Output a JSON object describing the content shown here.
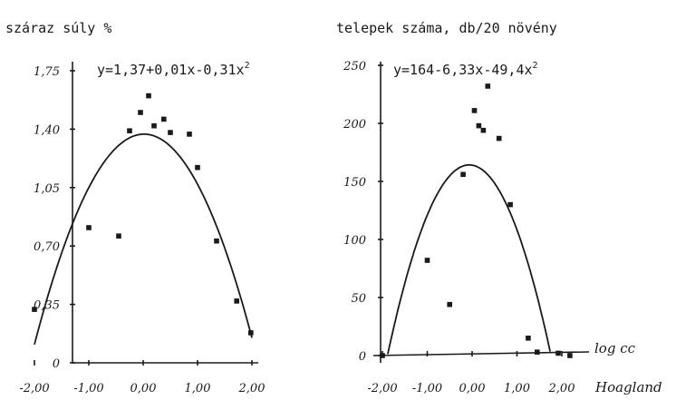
{
  "chart_data": [
    {
      "type": "scatter",
      "title": "száraz súly %",
      "equation": "y=1,37+0,01x-0,31x",
      "equation_exponent": "2",
      "fit": {
        "a": 1.37,
        "b": 0.01,
        "c": -0.31
      },
      "xlim": [
        -2.0,
        2.0
      ],
      "ylim": [
        0,
        1.75
      ],
      "xticks": [
        {
          "v": -2.0,
          "label": "-2,00"
        },
        {
          "v": -1.0,
          "label": "-1,00"
        },
        {
          "v": 0.0,
          "label": "0,00"
        },
        {
          "v": 1.0,
          "label": "1,00"
        },
        {
          "v": 2.0,
          "label": "2,00"
        }
      ],
      "yticks": [
        {
          "v": 0,
          "label": "0"
        },
        {
          "v": 0.35,
          "label": "0,35"
        },
        {
          "v": 0.7,
          "label": "0,70"
        },
        {
          "v": 1.05,
          "label": "1,05"
        },
        {
          "v": 1.4,
          "label": "1,40"
        },
        {
          "v": 1.75,
          "label": "1,75"
        }
      ],
      "points": [
        {
          "x": -2.0,
          "y": 0.32
        },
        {
          "x": -1.0,
          "y": 0.81
        },
        {
          "x": -0.45,
          "y": 0.76
        },
        {
          "x": -0.25,
          "y": 1.39
        },
        {
          "x": -0.05,
          "y": 1.5
        },
        {
          "x": 0.1,
          "y": 1.6
        },
        {
          "x": 0.2,
          "y": 1.42
        },
        {
          "x": 0.38,
          "y": 1.46
        },
        {
          "x": 0.5,
          "y": 1.38
        },
        {
          "x": 0.85,
          "y": 1.37
        },
        {
          "x": 1.0,
          "y": 1.17
        },
        {
          "x": 1.35,
          "y": 0.73
        },
        {
          "x": 1.72,
          "y": 0.37
        },
        {
          "x": 1.98,
          "y": 0.18
        }
      ]
    },
    {
      "type": "scatter",
      "title": "telepek száma, db/20 növény",
      "equation": "y=164-6,33x-49,4x",
      "equation_exponent": "2",
      "fit": {
        "a": 164,
        "b": -6.33,
        "c": -49.4
      },
      "xlabel": "log cc",
      "xlabel2": "Hoagland",
      "xlim": [
        -2.0,
        2.0
      ],
      "ylim": [
        0,
        250
      ],
      "xticks": [
        {
          "v": -2.0,
          "label": "-2,00"
        },
        {
          "v": -1.0,
          "label": "-1,00"
        },
        {
          "v": 0.0,
          "label": "0,00"
        },
        {
          "v": 1.0,
          "label": "1,00"
        },
        {
          "v": 2.0,
          "label": "2,00"
        }
      ],
      "yticks": [
        {
          "v": 0,
          "label": "0"
        },
        {
          "v": 50,
          "label": "50"
        },
        {
          "v": 100,
          "label": "100"
        },
        {
          "v": 150,
          "label": "150"
        },
        {
          "v": 200,
          "label": "200"
        },
        {
          "v": 250,
          "label": "250"
        }
      ],
      "points": [
        {
          "x": -2.0,
          "y": 0
        },
        {
          "x": -1.0,
          "y": 82
        },
        {
          "x": -0.5,
          "y": 44
        },
        {
          "x": -0.2,
          "y": 156
        },
        {
          "x": 0.05,
          "y": 211
        },
        {
          "x": 0.15,
          "y": 198
        },
        {
          "x": 0.25,
          "y": 194
        },
        {
          "x": 0.35,
          "y": 232
        },
        {
          "x": 0.6,
          "y": 187
        },
        {
          "x": 0.85,
          "y": 130
        },
        {
          "x": 1.25,
          "y": 15
        },
        {
          "x": 1.45,
          "y": 3
        },
        {
          "x": 1.92,
          "y": 2
        },
        {
          "x": 2.18,
          "y": 0
        }
      ]
    }
  ]
}
